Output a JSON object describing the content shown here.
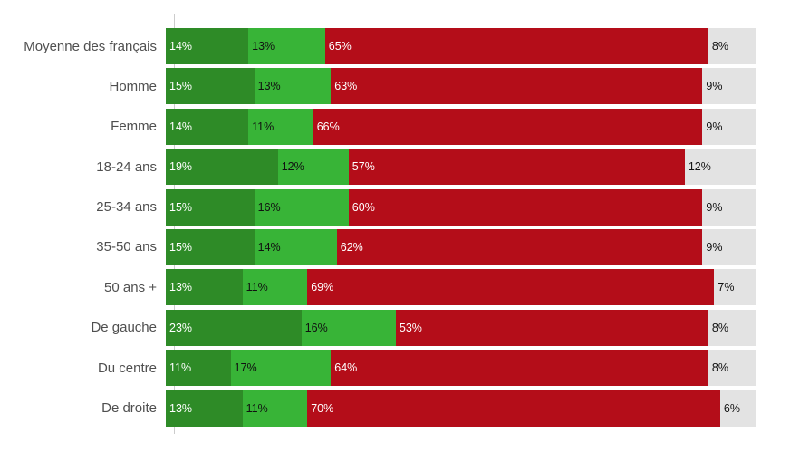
{
  "colors": {
    "dark_green": "#2e8b27",
    "light_green": "#38b437",
    "dark_red": "#b40d19",
    "light_gray": "#e3e3e3",
    "category_label_text": "#4f4f4f",
    "axis_line": "#cccccc",
    "value_text_on_dark": "#ffffff",
    "value_text_on_light": "#111111"
  },
  "chart_data": {
    "type": "bar",
    "orientation": "horizontal",
    "stacked": true,
    "grid": "off",
    "legend": "none",
    "xlim": [
      0,
      100
    ],
    "value_suffix": "%",
    "categories": [
      "Moyenne des français",
      "Homme",
      "Femme",
      "18-24 ans",
      "25-34 ans",
      "35-50 ans",
      "50 ans +",
      "De gauche",
      "Du centre",
      "De droite"
    ],
    "series": [
      {
        "name": "dark-green-segment",
        "color_key": "dark_green",
        "text_style": "light-text",
        "values": [
          14,
          15,
          14,
          19,
          15,
          15,
          13,
          23,
          11,
          13
        ],
        "labels": [
          "14%",
          "15%",
          "14%",
          "19%",
          "15%",
          "15%",
          "13%",
          "23%",
          "11%",
          "13%"
        ]
      },
      {
        "name": "light-green-segment",
        "color_key": "light_green",
        "text_style": "dark-text",
        "values": [
          13,
          13,
          11,
          12,
          16,
          14,
          11,
          16,
          17,
          11
        ],
        "labels": [
          "13%",
          "13%",
          "11%",
          "12%",
          "16%",
          "14%",
          "11%",
          "16%",
          "17%",
          "11%"
        ]
      },
      {
        "name": "dark-red-segment",
        "color_key": "dark_red",
        "text_style": "light-text",
        "values": [
          65,
          63,
          66,
          57,
          60,
          62,
          69,
          53,
          64,
          70
        ],
        "labels": [
          "65%",
          "63%",
          "66%",
          "57%",
          "60%",
          "62%",
          "69%",
          "53%",
          "64%",
          "70%"
        ]
      },
      {
        "name": "gray-segment",
        "color_key": "light_gray",
        "text_style": "dark-text",
        "values": [
          8,
          9,
          9,
          12,
          9,
          9,
          7,
          8,
          8,
          6
        ],
        "labels": [
          "8%",
          "9%",
          "9%",
          "12%",
          "9%",
          "9%",
          "7%",
          "8%",
          "8%",
          "6%"
        ]
      }
    ]
  }
}
